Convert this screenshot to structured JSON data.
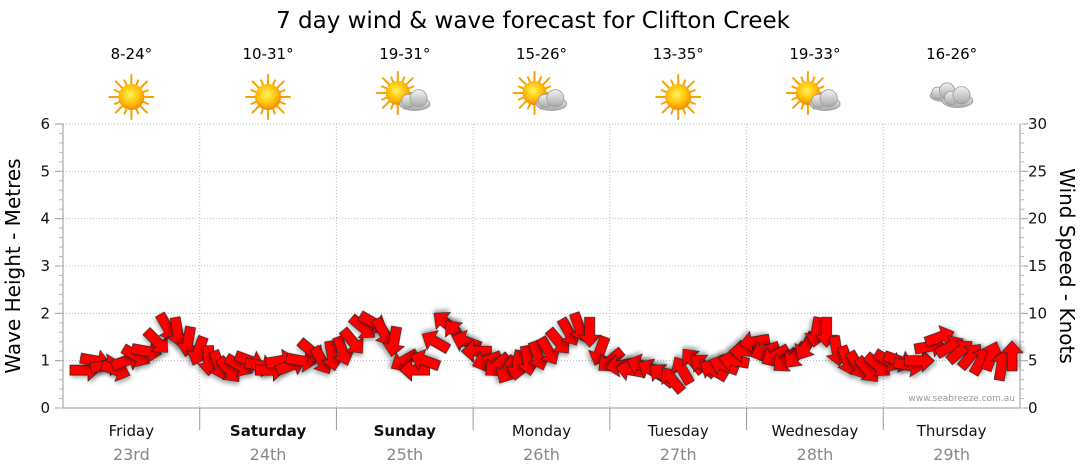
{
  "chart_data": {
    "type": "scatter",
    "title": "7 day wind & wave forecast for Clifton Creek",
    "y_left": {
      "label": "Wave Height - Metres",
      "range": [
        0,
        6
      ],
      "ticks": [
        "0",
        "1",
        "2",
        "3",
        "4",
        "5",
        "6"
      ]
    },
    "y_right": {
      "label": "Wind Speed - Knots",
      "range": [
        0,
        30
      ],
      "ticks": [
        "0",
        "5",
        "10",
        "15",
        "20",
        "25",
        "30"
      ]
    },
    "grid": true,
    "days": [
      {
        "name": "Friday",
        "date": "23rd",
        "temp": "8-24°",
        "icon": "sun-icon",
        "bold": false
      },
      {
        "name": "Saturday",
        "date": "24th",
        "temp": "10-31°",
        "icon": "sun-icon",
        "bold": true
      },
      {
        "name": "Sunday",
        "date": "25th",
        "temp": "19-31°",
        "icon": "sun-cloud-icon",
        "bold": true
      },
      {
        "name": "Monday",
        "date": "26th",
        "temp": "15-26°",
        "icon": "sun-cloud-icon",
        "bold": false
      },
      {
        "name": "Tuesday",
        "date": "27th",
        "temp": "13-35°",
        "icon": "sun-icon",
        "bold": false
      },
      {
        "name": "Wednesday",
        "date": "28th",
        "temp": "19-33°",
        "icon": "sun-cloud-icon",
        "bold": false
      },
      {
        "name": "Thursday",
        "date": "29th",
        "temp": "16-26°",
        "icon": "cloud-icon",
        "bold": false
      }
    ],
    "wind_series": {
      "name": "Wind Speed - Knots",
      "color": "#ff0000",
      "speed_knots": [
        4,
        5,
        4.5,
        4,
        5,
        5.5,
        6,
        7,
        8.5,
        8,
        7,
        6,
        5,
        4.5,
        4,
        4.5,
        5,
        4.5,
        4,
        5,
        4.5,
        5,
        6,
        5,
        5.5,
        6,
        7,
        8.5,
        9,
        8,
        7,
        5,
        4,
        5,
        7,
        9,
        8,
        7,
        6,
        5,
        4.5,
        4,
        4.5,
        5,
        5.5,
        6,
        7,
        8,
        8.5,
        8,
        6,
        5,
        4.5,
        4,
        4.5,
        4,
        3.5,
        3,
        4,
        5,
        4.5,
        4,
        4.5,
        5,
        6,
        7,
        6,
        5.5,
        5,
        5.5,
        6.5,
        8,
        8,
        6,
        5,
        4.5,
        4,
        4.5,
        5,
        5,
        4.5,
        5,
        6.5,
        7.5,
        6.5,
        6,
        5.5,
        5,
        5.5,
        4.5,
        5.5
      ],
      "direction_deg": [
        0,
        10,
        350,
        20,
        340,
        30,
        10,
        45,
        60,
        80,
        100,
        110,
        90,
        70,
        50,
        30,
        20,
        10,
        0,
        350,
        340,
        10,
        40,
        60,
        80,
        70,
        50,
        40,
        30,
        60,
        100,
        150,
        180,
        200,
        210,
        220,
        230,
        200,
        180,
        160,
        140,
        120,
        100,
        80,
        70,
        60,
        50,
        60,
        70,
        90,
        110,
        140,
        170,
        190,
        200,
        210,
        220,
        230,
        240,
        230,
        220,
        210,
        200,
        190,
        180,
        170,
        160,
        150,
        140,
        130,
        120,
        100,
        90,
        80,
        70,
        60,
        50,
        40,
        30,
        20,
        10,
        0,
        350,
        340,
        330,
        320,
        310,
        300,
        290,
        280,
        270
      ]
    },
    "credit": "www.seabreeze.com.au"
  }
}
